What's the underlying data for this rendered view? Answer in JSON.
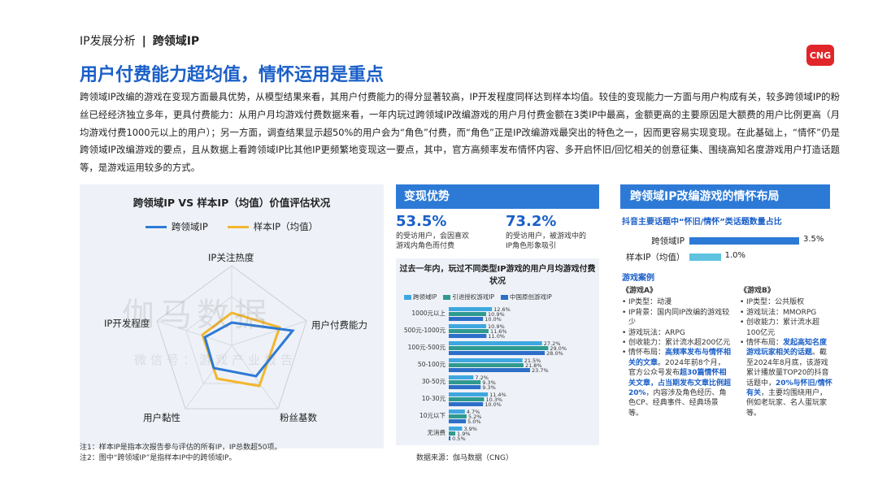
{
  "breadcrumb": {
    "section": "IP发展分析",
    "separator": "|",
    "current": "跨领域IP"
  },
  "logo": {
    "text": "CNG"
  },
  "title": "用户付费能力超均值，情怀运用是重点",
  "intro": "跨领域IP改编的游戏在变现方面最具优势，从模型结果来看，其用户付费能力的得分显著较高，IP开发程度同样达到样本均值。较佳的变现能力一方面与用户构成有关，较多跨领域IP的粉丝已经经济独立多年，更具付费能力：从用户月均游戏付费数据来看，一年内玩过跨领域IP改编游戏的用户月付费金额在3类IP中最高，金额更高的主要原因是大额费的用户比例更高（月均游戏付费1000元以上的用户）；另一方面，调查结果显示超50%的用户会为“角色”付费，而“角色”正是IP改编游戏最突出的特色之一，因而更容易实现变现。在此基础上，“情怀”仍是跨领域IP改编游戏的要点，且从数据上看跨领域IP比其他IP更频繁地变现这一要点，其中，官方高频率发布情怀内容、多开启怀旧/回忆相关的创意征集、围绕高知名度游戏用户打造话题等，是游戏运用较多的方式。",
  "watermark": {
    "main": "伽马数据",
    "sub": "微信号：游戏产业报告"
  },
  "radar": {
    "title": "跨领域IP VS 样本IP（均值）价值评估状况",
    "legend": [
      {
        "name": "跨领域IP",
        "color": "#2d7ad6"
      },
      {
        "name": "样本IP（均值）",
        "color": "#f2b630"
      }
    ],
    "axes": [
      "IP关注热度",
      "用户付费能力",
      "粉丝基数",
      "用户黏性",
      "IP开发程度"
    ]
  },
  "notes": [
    "注1：样本IP是指本次报告参与评估的所有IP，IP总数超50项。",
    "注2：图中“跨领域IP”是指样本IP中的跨领域IP。"
  ],
  "monetization": {
    "heading": "变现优势",
    "kpis": [
      {
        "value": "53.5%",
        "desc_line1": "的受访用户，会因喜欢",
        "desc_line2": "游戏内角色而付费"
      },
      {
        "value": "73.2%",
        "desc_line1": "的受访用户，被游戏中的",
        "desc_line2": "IP角色形象吸引"
      }
    ]
  },
  "chart_data": {
    "type": "bar",
    "title": "过去一年内，玩过不同类型IP游戏的用户月均游戏付费状况",
    "categories": [
      "1000元以上",
      "500元-1000元",
      "100元-500元",
      "50-100元",
      "30-50元",
      "10-30元",
      "10元以下",
      "无消费"
    ],
    "series": [
      {
        "name": "跨领域IP",
        "color": "#3fa7e0",
        "values": [
          12.6,
          10.9,
          27.2,
          21.5,
          7.2,
          11.4,
          4.7,
          3.9
        ]
      },
      {
        "name": "引进授权游戏IP",
        "color": "#2f9a8f",
        "values": [
          10.9,
          11.6,
          29.0,
          21.8,
          9.3,
          10.3,
          5.2,
          1.9
        ]
      },
      {
        "name": "中国原创游戏IP",
        "color": "#2d6fc8",
        "values": [
          10.0,
          11.0,
          28.0,
          23.7,
          9.3,
          10.0,
          5.0,
          0.5
        ]
      }
    ],
    "data_labels": [
      [
        "12.6%",
        "10.9%",
        "10.0%"
      ],
      [
        "10.9%",
        "11.6%",
        "11.0%"
      ],
      [
        "27.2%",
        "29.0%",
        "28.0%"
      ],
      [
        "21.5%",
        "21.8%",
        "23.7%"
      ],
      [
        "7.2%",
        "9.3%",
        "9.3%"
      ],
      [
        "11.4%",
        "10.3%",
        "10.0%"
      ],
      [
        "4.7%",
        "5.2%",
        "5.0%"
      ],
      [
        "3.9%",
        "1.9%",
        "0.5%"
      ]
    ],
    "xlim": [
      0,
      32
    ]
  },
  "source": "数据来源：伽马数据（CNG）",
  "nostalgia": {
    "heading": "跨领域IP改编游戏的情怀布局",
    "subhead": "抖音主要话题中“怀旧/情怀”类话题数量占比",
    "bars": [
      {
        "label": "跨领域IP",
        "value": 3.5,
        "value_text": "3.5%",
        "color": "#2d7ad6"
      },
      {
        "label": "样本IP（均值）",
        "value": 1.0,
        "value_text": "1.0%",
        "color": "#5fc2df"
      }
    ],
    "cases_title": "游戏案例",
    "game_a": {
      "name": "《游戏A》",
      "items": [
        "IP类型：动漫",
        "IP背景：国内同IP改编的游戏较少",
        "游戏玩法：ARPG",
        "创收能力：累计流水超200亿元"
      ],
      "layout_pre": "情怀布局：",
      "layout_hl1": "高频率发布与情怀相关的文章",
      "layout_mid": "。2024年前8个月，官方公众号发布",
      "layout_hl2": "超30篇情怀相关文章，占当期发布文章比例超20%",
      "layout_post": "，内容涉及角色经历、角色CP、经典事件、经典场景等。"
    },
    "game_b": {
      "name": "《游戏B》",
      "items": [
        "IP类型：公共版权",
        "游戏玩法：MMORPG",
        "创收能力：累计流水超100亿元"
      ],
      "layout_pre": "情怀布局：",
      "layout_hl1": "发起高知名度游戏玩家相关的话题",
      "layout_mid": "。截至2024年8月底，该游戏累计播放量TOP20的抖音话题中，",
      "layout_hl2": "20%与怀旧/情怀有关",
      "layout_post": "，主要均围绕用户，例如老玩家、名人蛋玩家等。"
    }
  }
}
